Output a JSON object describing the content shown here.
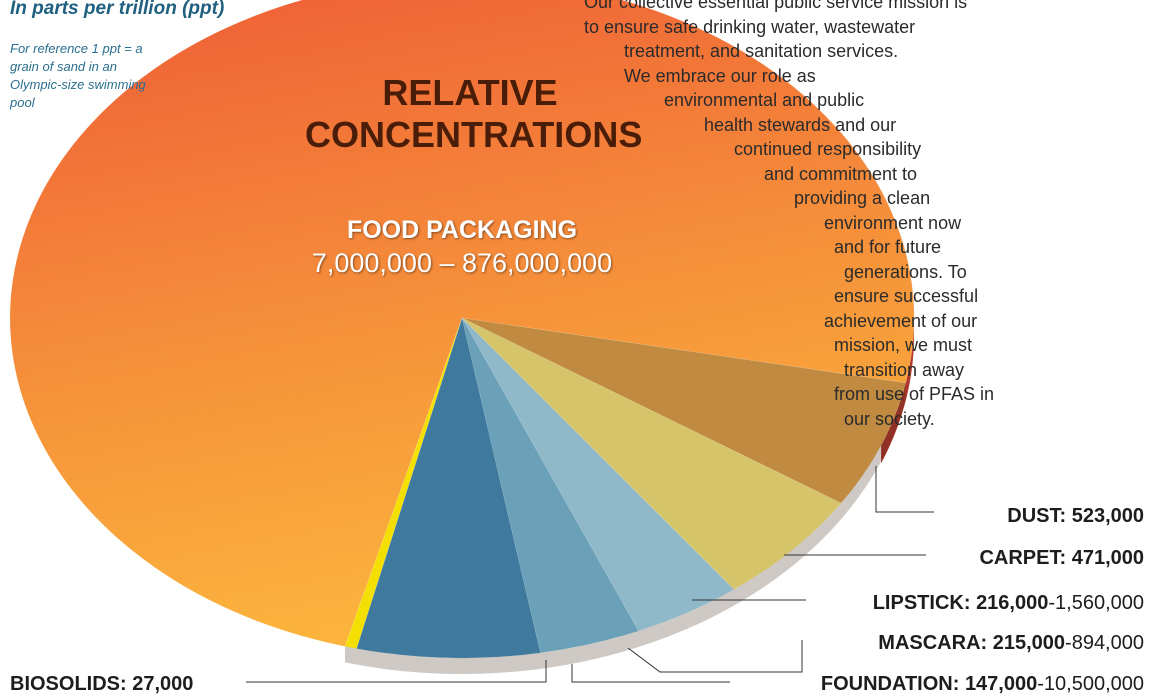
{
  "reference": {
    "title": "In parts per trillion (ppt)",
    "note": "For reference 1 ppt = a grain of sand in an Olympic-size swimming pool"
  },
  "mission_lines": [
    "Our collective essential public service mission is",
    "to ensure safe drinking water, wastewater",
    "treatment, and sanitation services.",
    "We embrace our role as",
    "environmental and public",
    "health stewards and our",
    "continued responsibility",
    "and commitment to",
    "providing a clean",
    "environment now",
    "and for future",
    "generations. To",
    "ensure successful",
    "achievement of our",
    "mission, we must",
    "transition away",
    "from use of PFAS in",
    "our society."
  ],
  "chart_data": {
    "type": "pie",
    "title": "RELATIVE CONCENTRATIONS",
    "unit": "ppt",
    "slices": [
      {
        "name": "FOOD PACKAGING",
        "low": 7000000,
        "high": 876000000,
        "range_text": "7,000,000 – 876,000,000",
        "color": "#f08a38"
      },
      {
        "name": "DUST",
        "value": 523000,
        "value_text": "523,000",
        "color": "#c08a40"
      },
      {
        "name": "CARPET",
        "value": 471000,
        "value_text": "471,000",
        "color": "#d6c46a"
      },
      {
        "name": "LIPSTICK",
        "low": 216000,
        "high": 1560000,
        "low_text": "216,000",
        "high_text": "-1,560,000",
        "color": "#8fb8c8"
      },
      {
        "name": "MASCARA",
        "low": 215000,
        "high": 894000,
        "low_text": "215,000",
        "high_text": "-894,000",
        "color": "#6aa0b8"
      },
      {
        "name": "FOUNDATION",
        "low": 147000,
        "high": 10500000,
        "low_text": "147,000",
        "high_text": "-10,500,000",
        "color": "#3f7a9e"
      },
      {
        "name": "BIOSOLIDS",
        "value": 27000,
        "value_text": "27,000",
        "color": "#f4e000"
      }
    ]
  }
}
